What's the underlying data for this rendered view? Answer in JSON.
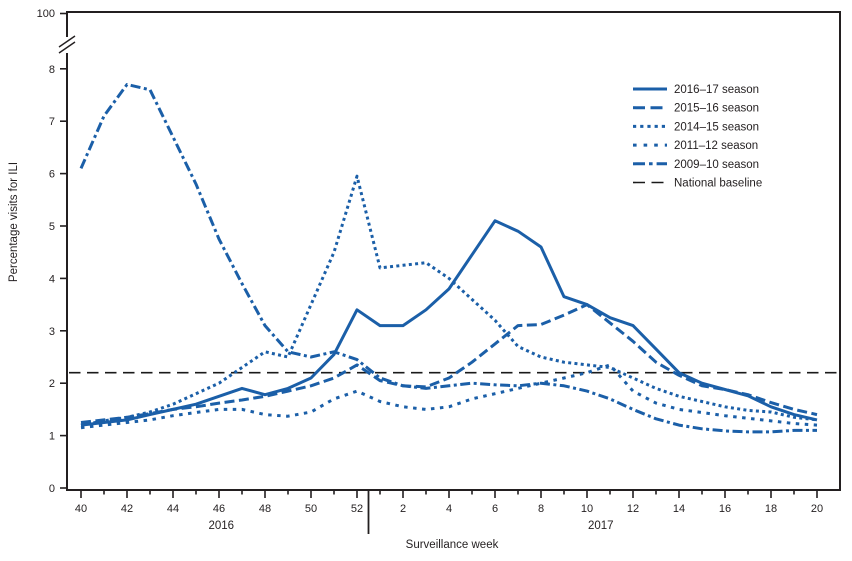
{
  "chart_data": {
    "type": "line",
    "title": "",
    "xlabel": "Surveillance week",
    "ylabel": "Percentage visits for ILI",
    "x_weeks": [
      40,
      41,
      42,
      43,
      44,
      45,
      46,
      47,
      48,
      49,
      50,
      51,
      52,
      1,
      2,
      3,
      4,
      5,
      6,
      7,
      8,
      9,
      10,
      11,
      12,
      13,
      14,
      15,
      16,
      17,
      18,
      19,
      20
    ],
    "y_ticks": [
      0,
      1,
      2,
      3,
      4,
      5,
      6,
      7,
      8
    ],
    "y_break_top_label": "100",
    "ylim": [
      0,
      8
    ],
    "grid": false,
    "legend_position": "upper-right",
    "year_labels": [
      {
        "text": "2016",
        "center_week_index": 6.1
      },
      {
        "text": "2017",
        "center_week_index": 22.6
      }
    ],
    "series_color": "#1B5FA8",
    "series": [
      {
        "name": "2016–17 season",
        "line_style": "solid",
        "values": [
          1.2,
          1.25,
          1.3,
          1.4,
          1.5,
          1.6,
          1.75,
          1.9,
          1.78,
          1.9,
          2.1,
          2.55,
          3.4,
          3.1,
          3.1,
          3.4,
          3.8,
          4.45,
          5.1,
          4.9,
          4.6,
          3.65,
          3.5,
          3.25,
          3.1,
          2.65,
          2.2,
          2.0,
          1.88,
          1.76,
          1.55,
          1.4,
          1.3
        ]
      },
      {
        "name": "2015–16 season",
        "line_style": "long-dash",
        "values": [
          1.25,
          1.3,
          1.35,
          1.42,
          1.5,
          1.55,
          1.62,
          1.68,
          1.75,
          1.85,
          1.95,
          2.1,
          2.35,
          2.05,
          1.95,
          1.93,
          2.1,
          2.4,
          2.75,
          3.1,
          3.12,
          3.3,
          3.5,
          3.15,
          2.8,
          2.4,
          2.15,
          1.95,
          1.88,
          1.78,
          1.63,
          1.5,
          1.4
        ]
      },
      {
        "name": "2014–15 season",
        "line_style": "dotted",
        "values": [
          1.2,
          1.28,
          1.35,
          1.45,
          1.6,
          1.8,
          2.0,
          2.3,
          2.6,
          2.5,
          3.5,
          4.5,
          5.95,
          4.2,
          4.25,
          4.3,
          4.0,
          3.6,
          3.2,
          2.7,
          2.5,
          2.4,
          2.35,
          2.3,
          2.1,
          1.9,
          1.75,
          1.65,
          1.55,
          1.48,
          1.45,
          1.35,
          1.3
        ]
      },
      {
        "name": "2011–12 season",
        "line_style": "square-dash",
        "values": [
          1.15,
          1.2,
          1.25,
          1.3,
          1.38,
          1.44,
          1.5,
          1.5,
          1.4,
          1.37,
          1.45,
          1.7,
          1.85,
          1.65,
          1.55,
          1.5,
          1.55,
          1.7,
          1.8,
          1.9,
          2.0,
          2.1,
          2.2,
          2.35,
          1.85,
          1.62,
          1.5,
          1.44,
          1.38,
          1.33,
          1.28,
          1.23,
          1.2
        ]
      },
      {
        "name": "2009–10 season",
        "line_style": "dash-dot",
        "values": [
          6.1,
          7.1,
          7.7,
          7.6,
          6.7,
          5.8,
          4.75,
          3.9,
          3.1,
          2.6,
          2.5,
          2.6,
          2.45,
          2.1,
          1.95,
          1.9,
          1.95,
          2.0,
          1.97,
          1.95,
          2.0,
          1.95,
          1.85,
          1.7,
          1.5,
          1.32,
          1.2,
          1.13,
          1.09,
          1.07,
          1.07,
          1.1,
          1.1
        ]
      }
    ],
    "baseline": {
      "label": "National baseline",
      "value": 2.2,
      "color": "#1a1a1a",
      "line_style": "black-dash"
    }
  }
}
